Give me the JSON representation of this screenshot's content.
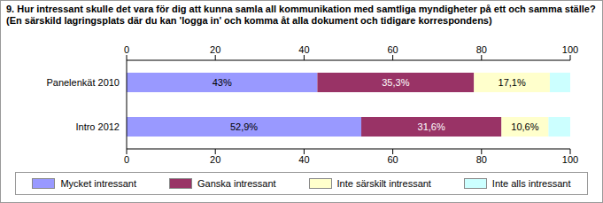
{
  "chart_data": {
    "type": "bar",
    "title": "9. Hur intressant skulle det vara för dig att kunna samla all kommunikation med samtliga myndigheter på ett och samma ställe? (En särskild lagringsplats där du kan 'logga in' och komma åt alla dokument och tidigare korrespondens)",
    "orientation": "horizontal",
    "stacked": true,
    "data_labels": true,
    "grid": false,
    "legend": "bottom",
    "categories": [
      "Panelenkät 2010",
      "Intro 2012"
    ],
    "series": [
      {
        "name": "Mycket intressant",
        "color": "#9999ff",
        "values": [
          43,
          52.9
        ],
        "value_labels": [
          "43%",
          "52,9%"
        ]
      },
      {
        "name": "Ganska intressant",
        "color": "#993366",
        "values": [
          35.3,
          31.6
        ],
        "value_labels": [
          "35,3%",
          "31,6%"
        ]
      },
      {
        "name": "Inte särskilt intressant",
        "color": "#ffffcc",
        "values": [
          17.1,
          10.6
        ],
        "value_labels": [
          "17,1%",
          "10,6%"
        ]
      },
      {
        "name": "Inte alls intressant",
        "color": "#ccffff",
        "values": [
          4.6,
          4.9
        ]
      }
    ],
    "xlim": [
      0,
      100
    ],
    "xticks": [
      0,
      20,
      40,
      60,
      80,
      100
    ]
  }
}
